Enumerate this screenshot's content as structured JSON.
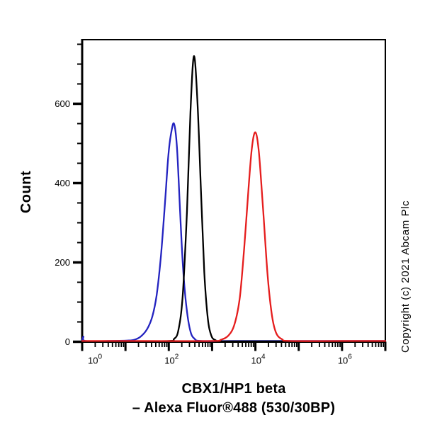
{
  "title": {
    "line1": "CBX1/HP1 beta",
    "line2": "– Alexa Fluor®488 (530/30BP)"
  },
  "copyright": "Copyright (c) 2021 Abcam Plc",
  "chart_data": {
    "type": "line",
    "subtype": "flow-cytometry-histogram",
    "grid": "off",
    "legend": "none",
    "x_axis": {
      "scale": "log10",
      "range_decades": [
        0,
        7
      ],
      "major_tick_decades": [
        0,
        1,
        2,
        3,
        4,
        5,
        6,
        7
      ],
      "labeled_ticks": [
        {
          "decade": 0,
          "base": "10",
          "exp": "0"
        },
        {
          "decade": 2,
          "base": "10",
          "exp": "2"
        },
        {
          "decade": 4,
          "base": "10",
          "exp": "4"
        },
        {
          "decade": 6,
          "base": "10",
          "exp": "6"
        }
      ],
      "minor_tick_multiples": [
        2,
        3,
        4,
        5,
        6,
        7,
        8,
        9
      ]
    },
    "y_axis": {
      "label": "Count",
      "range": [
        0,
        760
      ],
      "major_ticks": [
        0,
        200,
        400,
        600
      ],
      "minor_tick_interval": 50,
      "minor_tick_max": 750
    },
    "series": [
      {
        "name": "blue-curve",
        "color": "#2323c0",
        "peak_x": 132,
        "peak_count": 550,
        "points_log10x_count": [
          [
            0.0,
            2
          ],
          [
            0.03,
            13
          ],
          [
            0.07,
            2
          ],
          [
            0.6,
            2
          ],
          [
            1.05,
            3
          ],
          [
            1.2,
            5
          ],
          [
            1.35,
            13
          ],
          [
            1.5,
            32
          ],
          [
            1.62,
            64
          ],
          [
            1.72,
            118
          ],
          [
            1.82,
            218
          ],
          [
            1.92,
            362
          ],
          [
            1.99,
            470
          ],
          [
            2.05,
            523
          ],
          [
            2.12,
            550
          ],
          [
            2.19,
            488
          ],
          [
            2.26,
            330
          ],
          [
            2.33,
            185
          ],
          [
            2.41,
            85
          ],
          [
            2.5,
            26
          ],
          [
            2.6,
            7
          ],
          [
            2.75,
            2
          ],
          [
            3.5,
            2
          ],
          [
            5.0,
            2
          ],
          [
            7.0,
            2
          ]
        ]
      },
      {
        "name": "black-curve",
        "color": "#000000",
        "peak_x": 385,
        "peak_count": 720,
        "points_log10x_count": [
          [
            0.0,
            1
          ],
          [
            1.0,
            1
          ],
          [
            2.0,
            2
          ],
          [
            2.12,
            7
          ],
          [
            2.22,
            28
          ],
          [
            2.32,
            115
          ],
          [
            2.42,
            330
          ],
          [
            2.5,
            580
          ],
          [
            2.58,
            720
          ],
          [
            2.66,
            610
          ],
          [
            2.74,
            390
          ],
          [
            2.82,
            175
          ],
          [
            2.9,
            60
          ],
          [
            2.98,
            16
          ],
          [
            3.08,
            4
          ],
          [
            3.25,
            1
          ],
          [
            5.0,
            1
          ],
          [
            7.0,
            1
          ]
        ]
      },
      {
        "name": "red-curve",
        "color": "#e51d1d",
        "peak_x": 10000,
        "peak_count": 528,
        "points_log10x_count": [
          [
            0.0,
            2
          ],
          [
            1.5,
            2
          ],
          [
            3.0,
            2
          ],
          [
            3.2,
            5
          ],
          [
            3.38,
            16
          ],
          [
            3.52,
            45
          ],
          [
            3.64,
            112
          ],
          [
            3.74,
            235
          ],
          [
            3.84,
            385
          ],
          [
            3.92,
            490
          ],
          [
            4.0,
            528
          ],
          [
            4.08,
            478
          ],
          [
            4.18,
            330
          ],
          [
            4.28,
            170
          ],
          [
            4.38,
            68
          ],
          [
            4.48,
            22
          ],
          [
            4.62,
            6
          ],
          [
            4.8,
            2
          ],
          [
            6.0,
            2
          ],
          [
            7.0,
            2
          ]
        ]
      }
    ]
  }
}
